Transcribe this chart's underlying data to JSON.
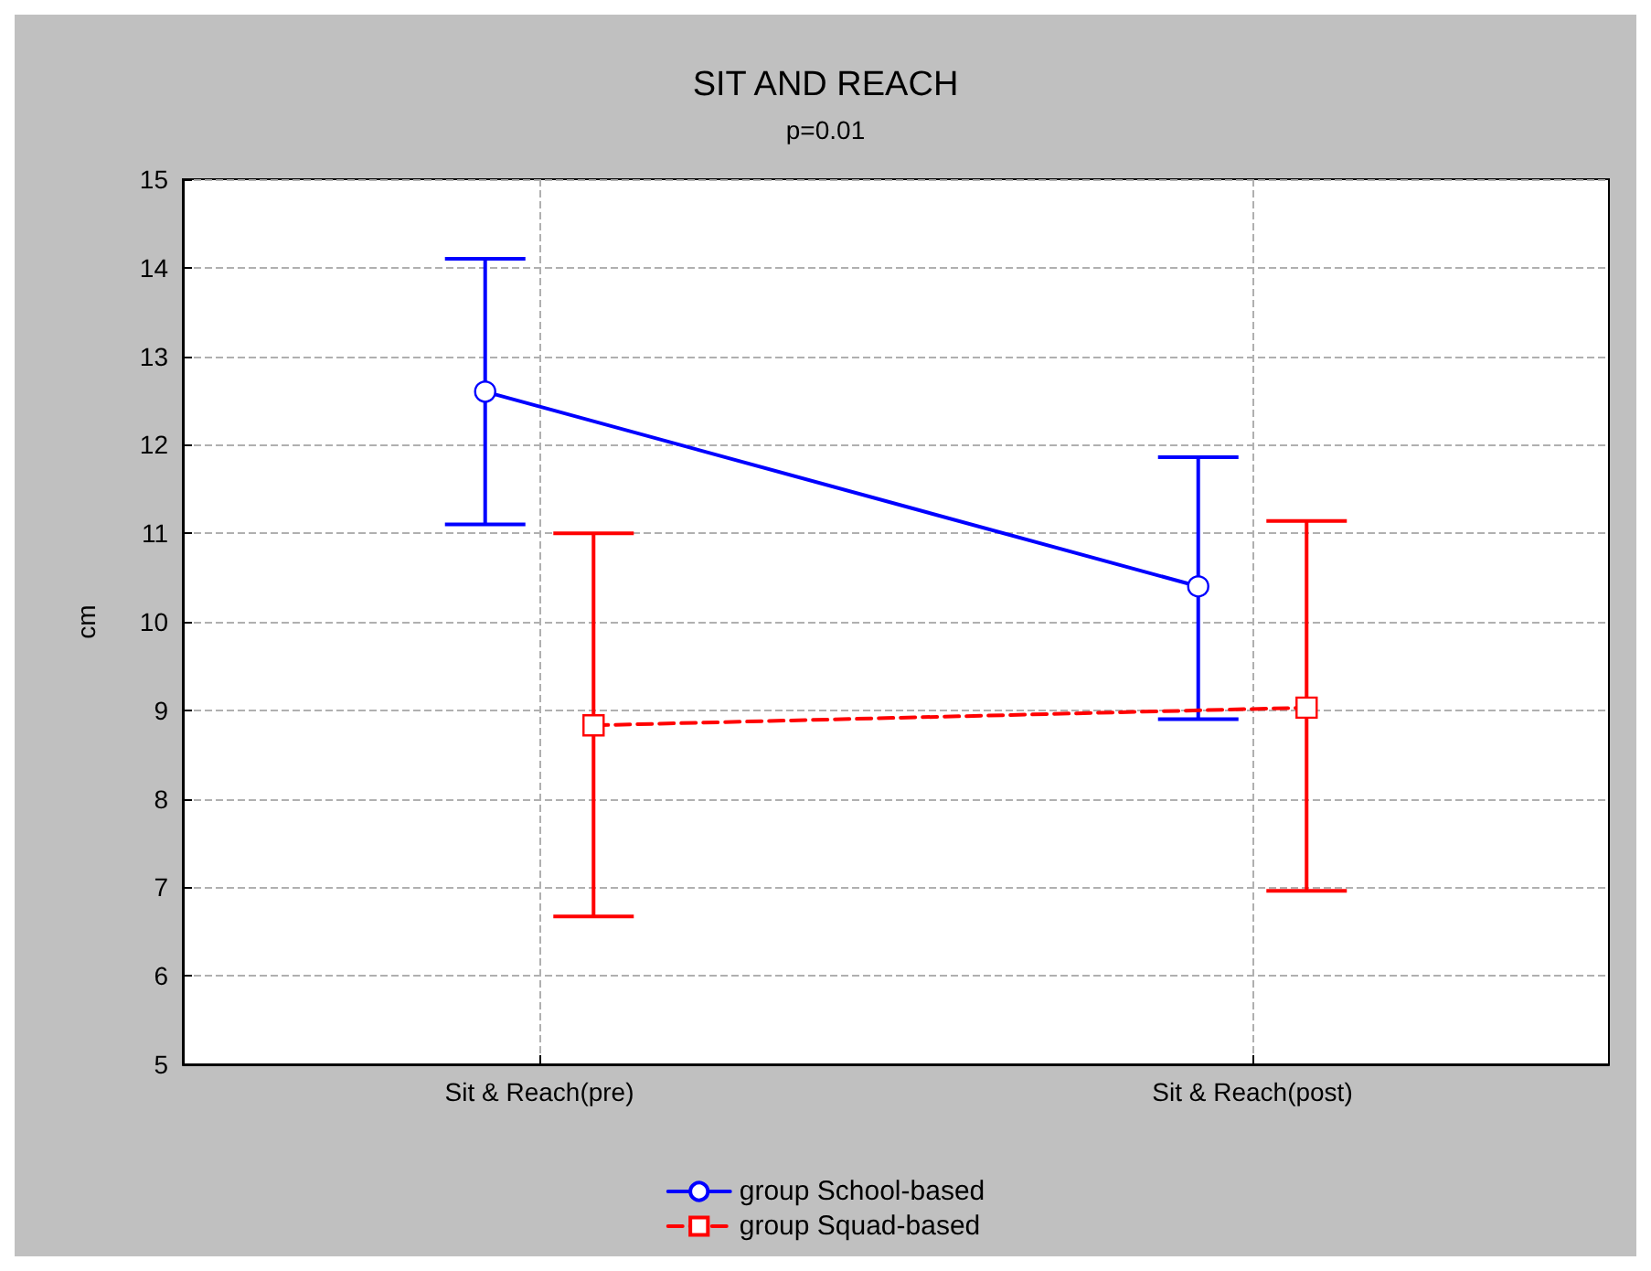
{
  "chart_data": {
    "type": "line",
    "title": "SIT AND REACH",
    "subtitle": "p=0.01",
    "ylabel": "cm",
    "categories": [
      "Sit & Reach(pre)",
      "Sit & Reach(post)"
    ],
    "series": [
      {
        "name": "group School-based",
        "color": "#0000ff",
        "values": [
          12.6,
          10.4
        ],
        "errors": [
          [
            11.1,
            14.1
          ],
          [
            8.9,
            11.86
          ]
        ],
        "marker": "circle",
        "line_style": "solid"
      },
      {
        "name": "group Squad-based",
        "color": "#ff0000",
        "values": [
          8.83,
          9.03
        ],
        "errors": [
          [
            6.67,
            11.0
          ],
          [
            6.96,
            11.14
          ]
        ],
        "marker": "square",
        "line_style": "dashed"
      }
    ],
    "ylim": [
      5,
      15
    ],
    "yticks": [
      5,
      6,
      7,
      8,
      9,
      10,
      11,
      12,
      13,
      14,
      15
    ],
    "grid": true,
    "legend": "bottom"
  }
}
